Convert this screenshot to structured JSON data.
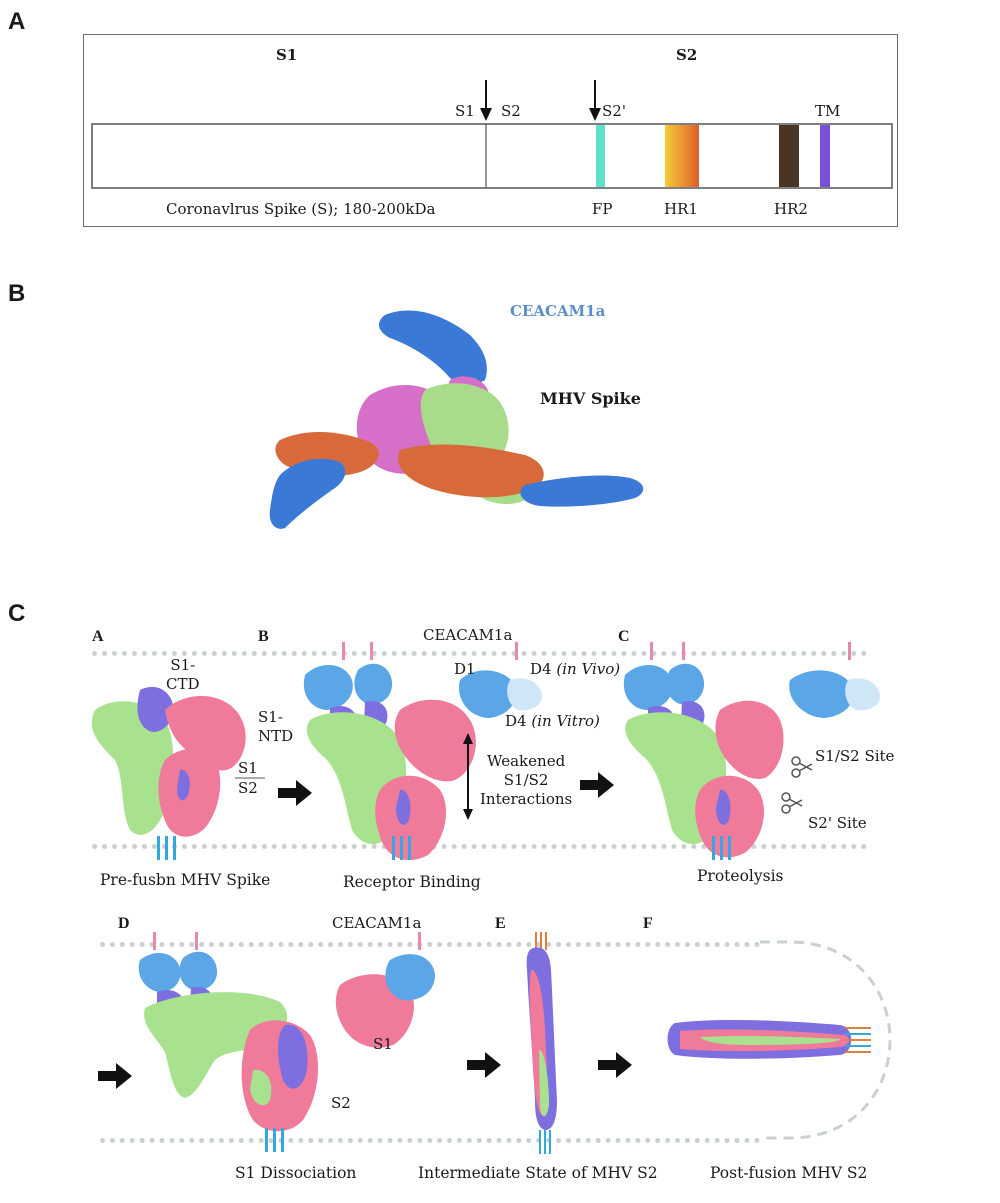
{
  "panel_a": {
    "letter": "A",
    "s1_domain": "S1",
    "s2_domain": "S2",
    "cleavage1_left": "S1",
    "cleavage1_right": "S2",
    "cleavage2": "S2'",
    "tm": "TM",
    "caption": "Coronavlrus Spike (S); 180-200kDa",
    "fp": "FP",
    "hr1": "HR1",
    "hr2": "HR2",
    "colors": {
      "fp": "#5fe0c8",
      "hr1_start": "#f2c53a",
      "hr1_end": "#e06a2c",
      "hr2": "#4a3524",
      "tm": "#7b4fd6"
    }
  },
  "panel_b": {
    "letter": "B",
    "receptor_label": "CEACAM1a",
    "spike_label": "MHV Spike",
    "colors": {
      "receptor": "#3a79d6",
      "chain_pink": "#d66fc8",
      "chain_green": "#a8dc8a",
      "chain_orange": "#d8693a"
    }
  },
  "panel_c": {
    "letter": "C",
    "step_a": {
      "letter": "A",
      "s1_ctd": "S1-\nCTD",
      "s1_ntd": "S1-\nNTD",
      "s1_over": "S1",
      "s2_under": "S2",
      "caption": "Pre-fusbn MHV Spike"
    },
    "step_b": {
      "letter": "B",
      "receptor": "CEACAM1a",
      "d1": "D1",
      "d4_vivo": "D4",
      "d4_vivo_note": "(in Vivo)",
      "d4_vitro": "D4",
      "d4_vitro_note": "(in Vitro)",
      "weakened": "Weakened\nS1/S2\nInteractions",
      "caption": "Receptor Binding"
    },
    "step_c": {
      "letter": "C",
      "s1s2_site": "S1/S2 Site",
      "s2p_site": "S2' Site",
      "caption": "Proteolysis"
    },
    "step_d": {
      "letter": "D",
      "receptor": "CEACAM1a",
      "s1": "S1",
      "s2": "S2",
      "caption": "S1 Dissociation"
    },
    "step_e": {
      "letter": "E",
      "caption": "Intermediate State of MHV S2"
    },
    "step_f": {
      "letter": "F",
      "caption": "Post-fusion MHV S2"
    },
    "colors": {
      "green": "#a9e28f",
      "pink": "#f07a9a",
      "purple": "#7d6fe0",
      "blue": "#5aa6e6",
      "light_blue": "#cfe6f7",
      "tm": "#35a6e0"
    }
  }
}
